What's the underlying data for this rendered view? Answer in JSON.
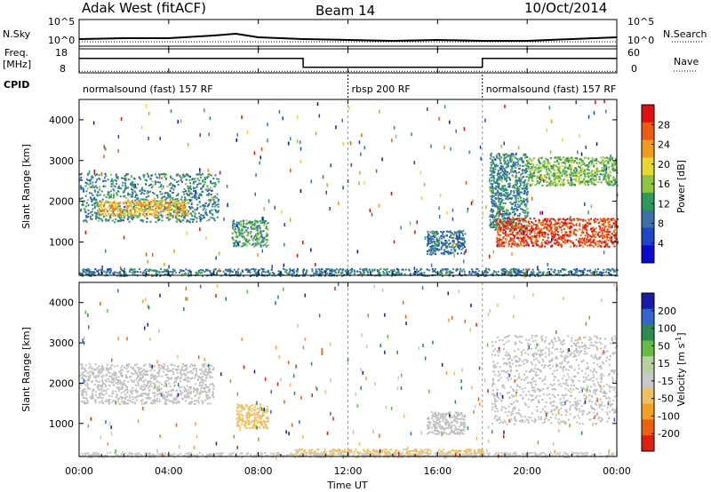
{
  "header": {
    "title_left": "Adak West (fitACF)",
    "title_center": "Beam 14",
    "title_right": "10/Oct/2014"
  },
  "top_panels": {
    "nsky_label": "N.Sky",
    "nsky_ticks": [
      "10^5",
      "10^0"
    ],
    "nsearch_label": "N.Search",
    "nsearch_ticks": [
      "10^5",
      "10^0"
    ],
    "freq_label_1": "Freq.",
    "freq_label_2": "[MHz]",
    "freq_ticks": [
      "18",
      "8"
    ],
    "nave_label": "Nave",
    "nave_ticks": [
      "60",
      "0"
    ],
    "cpid_label": "CPID"
  },
  "cpid_segments": [
    {
      "label": "normalsound (fast) 157 RF",
      "start": 0,
      "end": 12
    },
    {
      "label": "rbsp 200 RF",
      "start": 12,
      "end": 18
    },
    {
      "label": "normalsound (fast) 157 RF",
      "start": 18,
      "end": 24
    }
  ],
  "x_axis": {
    "label": "Time UT",
    "tick_labels": [
      "00:00",
      "04:00",
      "08:00",
      "12:00",
      "16:00",
      "20:00",
      "00:00"
    ],
    "tick_hours": [
      0,
      4,
      8,
      12,
      16,
      20,
      24
    ]
  },
  "colors": {
    "power": [
      "#0a0acc",
      "#1c46c8",
      "#3b72a6",
      "#2e9a5a",
      "#8ec63f",
      "#e7d830",
      "#f29a20",
      "#ee5a10",
      "#e01010"
    ],
    "velocity": [
      "#1a1aa8",
      "#3366cc",
      "#2b8a4e",
      "#66bb44",
      "#b8d0a0",
      "#c8c8c8",
      "#eec060",
      "#f2a020",
      "#ee6010",
      "#dd2010"
    ],
    "gray_scatter": "#c0c0c0"
  },
  "chart_data": [
    {
      "type": "line",
      "title": "N.Sky / N.Search",
      "x": [
        0,
        2,
        4,
        6,
        7,
        8,
        10,
        12,
        14,
        16,
        18,
        20,
        22,
        24
      ],
      "series": [
        {
          "name": "N.Sky",
          "values": [
            8,
            9,
            9,
            12,
            14,
            10,
            8,
            7,
            6,
            7,
            6,
            6,
            8,
            10
          ]
        },
        {
          "name": "N.Search",
          "values": [
            5,
            5,
            5,
            5,
            5,
            5,
            5,
            5,
            5,
            5,
            5,
            5,
            5,
            5
          ]
        }
      ],
      "ylabel": "N.Sky",
      "y2label": "N.Search"
    },
    {
      "type": "line",
      "title": "Freq. / Nave",
      "x": [
        0,
        10,
        10,
        18,
        18,
        24
      ],
      "series": [
        {
          "name": "Freq.",
          "values": [
            14,
            14,
            10.3,
            10.3,
            14,
            14
          ]
        },
        {
          "name": "Nave",
          "values": [
            4,
            4,
            4,
            4,
            4,
            4
          ]
        }
      ],
      "ylim": [
        8,
        18
      ],
      "y2lim": [
        0,
        60
      ],
      "ylabel": "Freq. [MHz]",
      "y2label": "Nave"
    },
    {
      "type": "heatmap",
      "title": "Power",
      "xlabel": "",
      "ylabel": "Slant Range [km]",
      "xlim": [
        0,
        24
      ],
      "ylim": [
        180,
        4500
      ],
      "y_tick_labels": [
        "1000",
        "2000",
        "3000",
        "4000"
      ],
      "y_ticks": [
        1000,
        2000,
        3000,
        4000
      ],
      "colorbar_label": "Power [dB]",
      "colorbar_ticks": [
        "4",
        "8",
        "12",
        "16",
        "20",
        "24",
        "28"
      ],
      "colorbar_range": [
        0,
        30
      ],
      "regions": [
        {
          "t0": 0.0,
          "t1": 6.2,
          "r0": 1500,
          "r1": 2700,
          "value": 10
        },
        {
          "t0": 0.8,
          "t1": 4.8,
          "r0": 1650,
          "r1": 2050,
          "value": 20
        },
        {
          "t0": 6.8,
          "t1": 8.4,
          "r0": 900,
          "r1": 1550,
          "value": 12
        },
        {
          "t0": 15.5,
          "t1": 17.2,
          "r0": 700,
          "r1": 1300,
          "value": 8
        },
        {
          "t0": 18.3,
          "t1": 20.0,
          "r0": 1300,
          "r1": 3200,
          "value": 10
        },
        {
          "t0": 18.6,
          "t1": 24.0,
          "r0": 900,
          "r1": 1600,
          "value": 26
        },
        {
          "t0": 20.0,
          "t1": 24.0,
          "r0": 2400,
          "r1": 3100,
          "value": 14
        },
        {
          "t0": 0.0,
          "t1": 24.0,
          "r0": 180,
          "r1": 360,
          "value": 9
        }
      ]
    },
    {
      "type": "heatmap",
      "title": "Velocity",
      "xlabel": "Time UT",
      "ylabel": "Slant Range [km]",
      "xlim": [
        0,
        24
      ],
      "ylim": [
        180,
        4500
      ],
      "y_tick_labels": [
        "1000",
        "2000",
        "3000",
        "4000"
      ],
      "y_ticks": [
        1000,
        2000,
        3000,
        4000
      ],
      "colorbar_label": "Velocity [m s^-1]",
      "colorbar_ticks": [
        "200",
        "100",
        "50",
        "15",
        "-15",
        "-50",
        "-100",
        "-200"
      ],
      "colorbar_range": [
        -250,
        250
      ],
      "regions": [
        {
          "t0": 0.0,
          "t1": 6.0,
          "r0": 1500,
          "r1": 2500,
          "value": 0
        },
        {
          "t0": 7.0,
          "t1": 8.4,
          "r0": 900,
          "r1": 1500,
          "value": -60
        },
        {
          "t0": 15.5,
          "t1": 17.2,
          "r0": 750,
          "r1": 1300,
          "value": 0
        },
        {
          "t0": 18.4,
          "t1": 24.0,
          "r0": 1000,
          "r1": 3200,
          "value": 0
        },
        {
          "t0": 9.5,
          "t1": 18.0,
          "r0": 180,
          "r1": 380,
          "value": -60
        },
        {
          "t0": 0.0,
          "t1": 24.0,
          "r0": 180,
          "r1": 300,
          "value": -30
        }
      ]
    }
  ]
}
